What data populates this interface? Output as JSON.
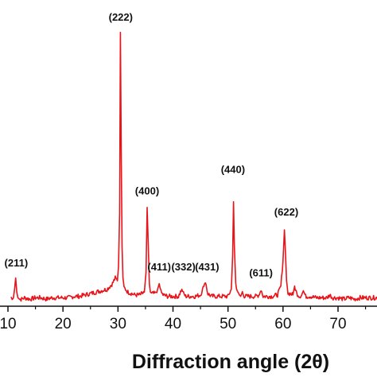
{
  "chart_data": {
    "type": "line",
    "title": "",
    "xlabel": "Diffraction angle (2θ)",
    "ylabel": "",
    "xlim": [
      10.5,
      77.5
    ],
    "ylim": [
      0,
      100
    ],
    "x_ticks": [
      10,
      20,
      30,
      40,
      50,
      60,
      70
    ],
    "grid": false,
    "line_color": "#e8141a",
    "series": [
      {
        "x": [
          10.5,
          11.0,
          11.2,
          11.4,
          11.6,
          11.8,
          12.1,
          12.5,
          13,
          14,
          15,
          16,
          17,
          18,
          19,
          20,
          21,
          22,
          23,
          24,
          25,
          26,
          27,
          28,
          28.5,
          29,
          29.5,
          29.9,
          30.1,
          30.3,
          30.45,
          30.6,
          30.75,
          30.9,
          31.1,
          31.4,
          31.8,
          32.5,
          33,
          34,
          34.8,
          35.1,
          35.3,
          35.5,
          35.7,
          35.9,
          36.2,
          36.8,
          37.2,
          37.5,
          37.8,
          38.2,
          39,
          40,
          41,
          41.6,
          41.9,
          42.3,
          43,
          44,
          45,
          45.6,
          45.9,
          46.3,
          47,
          48,
          49,
          50,
          50.6,
          50.85,
          51.0,
          51.15,
          51.4,
          51.8,
          52.3,
          52.6,
          53,
          54,
          55,
          55.7,
          56.0,
          56.4,
          57,
          58,
          59,
          59.6,
          60.0,
          60.25,
          60.45,
          60.65,
          60.9,
          61.3,
          61.8,
          62.1,
          62.5,
          63,
          63.4,
          63.7,
          64.1,
          65,
          66,
          67,
          68,
          68.5,
          69,
          70,
          71,
          72,
          73,
          74,
          75,
          76,
          77.5
        ],
        "values": [
          3,
          3,
          6,
          10,
          5,
          3,
          2.5,
          2.5,
          3,
          2.5,
          3,
          3,
          2.5,
          3,
          3,
          3,
          3,
          3.5,
          3.5,
          4,
          4.5,
          5,
          5.5,
          6,
          7,
          8,
          10,
          9,
          14,
          33,
          97,
          52,
          21,
          10,
          7,
          6,
          5,
          4.5,
          4,
          4,
          5,
          12,
          35,
          22,
          8,
          5,
          4.5,
          4.5,
          6,
          8,
          5,
          4,
          3.5,
          3.5,
          3.5,
          6,
          4.5,
          3.5,
          3.5,
          3.5,
          4,
          7,
          9,
          4.5,
          3.5,
          3.5,
          3.5,
          3.5,
          6,
          18,
          37,
          22,
          8,
          4.5,
          3.5,
          5,
          3.5,
          3.5,
          3.5,
          4,
          6,
          3.5,
          3.5,
          3.5,
          4,
          7,
          16,
          27,
          19,
          9,
          4.5,
          4.5,
          4,
          7,
          4.5,
          3.5,
          4,
          5.5,
          3.5,
          3.5,
          3,
          3,
          3,
          4,
          3,
          3,
          2.5,
          3,
          2.5,
          3,
          3,
          3,
          3
        ]
      }
    ],
    "peak_labels": [
      {
        "text": "(211)",
        "x": 11.5,
        "y": 13
      },
      {
        "text": "(222)",
        "x": 30.5,
        "y": 100
      },
      {
        "text": "(400)",
        "x": 35.3,
        "y": 38.5
      },
      {
        "text": "(411)",
        "x": 37.5,
        "y": 11.5
      },
      {
        "text": "(332)",
        "x": 41.9,
        "y": 11.5
      },
      {
        "text": "(431)",
        "x": 46.2,
        "y": 11.5
      },
      {
        "text": "(440)",
        "x": 50.9,
        "y": 46
      },
      {
        "text": "(611)",
        "x": 56.0,
        "y": 9.5
      },
      {
        "text": "(622)",
        "x": 60.6,
        "y": 31
      }
    ]
  }
}
